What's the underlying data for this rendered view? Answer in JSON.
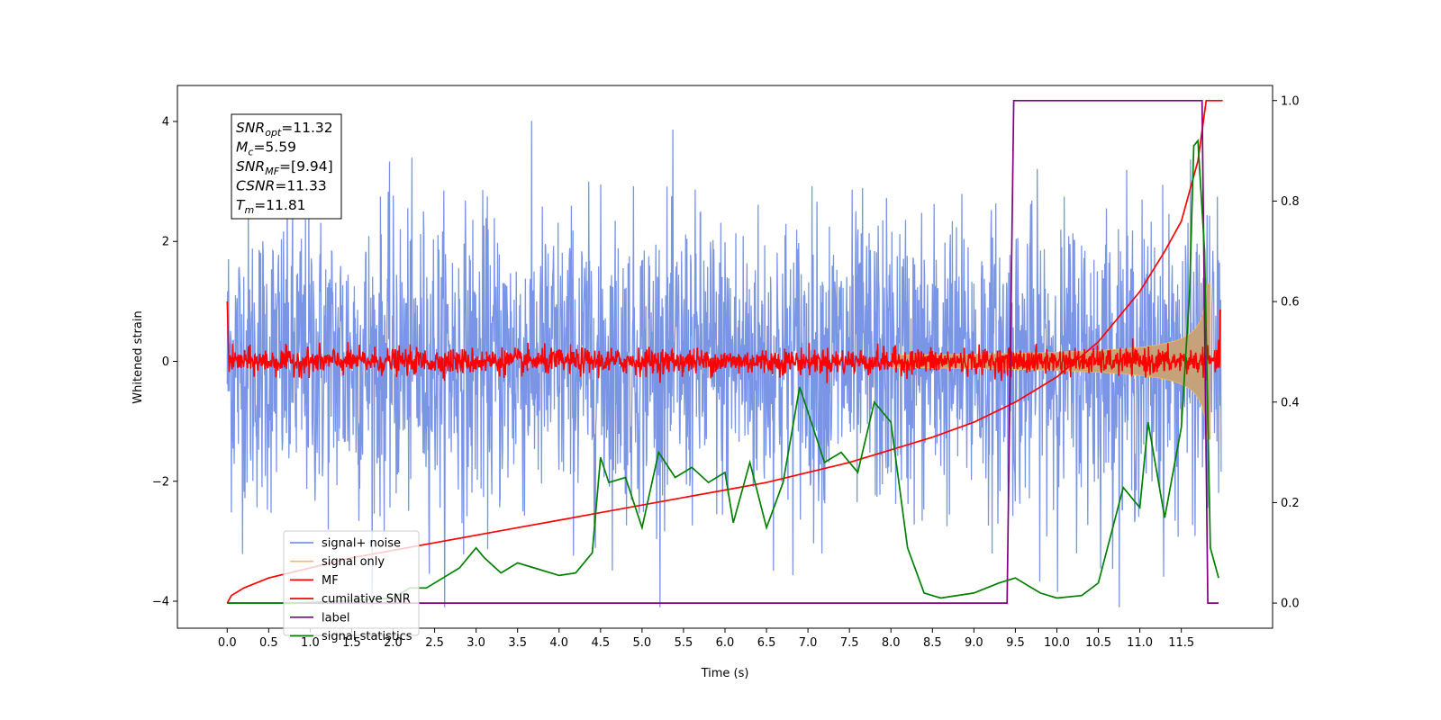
{
  "chart_data": {
    "type": "line",
    "xlabel": "Time (s)",
    "ylabel": "Whitened strain",
    "xlim": [
      -0.6,
      12.6
    ],
    "ylim": [
      -4.45,
      4.6
    ],
    "y2lim": [
      -0.05,
      1.03
    ],
    "xticks": [
      "0.0",
      "0.5",
      "1.0",
      "1.5",
      "2.0",
      "2.5",
      "3.0",
      "3.5",
      "4.0",
      "4.5",
      "5.0",
      "5.5",
      "6.0",
      "6.5",
      "7.0",
      "7.5",
      "8.0",
      "8.5",
      "9.0",
      "9.5",
      "10.0",
      "10.5",
      "11.0",
      "11.5"
    ],
    "yticks": [
      "−4",
      "−2",
      "0",
      "2",
      "4"
    ],
    "y2ticks": [
      "0.0",
      "0.2",
      "0.4",
      "0.6",
      "0.8",
      "1.0"
    ],
    "grid": false,
    "legend_position": "lower-left",
    "annotation": {
      "lines": [
        {
          "name": "SNR",
          "sub": "opt",
          "value": "=11.32"
        },
        {
          "name": "M",
          "sub": "c",
          "value": "=5.59"
        },
        {
          "name": "SNR",
          "sub": "MF",
          "value": "=[9.94]"
        },
        {
          "name": "CSNR",
          "sub": "",
          "value": "=11.33"
        },
        {
          "name": "T",
          "sub": "m",
          "value": "=11.81"
        }
      ]
    },
    "series": [
      {
        "name": "signal+ noise",
        "color": "#7a95e6",
        "axis": "left",
        "style": "noise",
        "amplitude": 1.2
      },
      {
        "name": "signal only",
        "color": "#f5b85f",
        "axis": "left",
        "style": "chirp",
        "fill": "#c6a27a"
      },
      {
        "name": "MF",
        "color": "#ff0000",
        "axis": "left",
        "style": "noise",
        "amplitude": 0.12
      },
      {
        "name": "cumilative SNR",
        "color": "#ff0000",
        "axis": "right",
        "x": [
          0.0,
          0.05,
          0.2,
          0.5,
          1.0,
          1.5,
          2.0,
          2.5,
          3.0,
          3.5,
          4.0,
          4.5,
          5.0,
          5.5,
          6.0,
          6.5,
          7.0,
          7.5,
          8.0,
          8.5,
          9.0,
          9.5,
          10.0,
          10.5,
          11.0,
          11.3,
          11.5,
          11.6,
          11.7,
          11.8,
          11.9,
          12.0
        ],
        "y": [
          0.0,
          0.015,
          0.03,
          0.05,
          0.07,
          0.09,
          0.105,
          0.12,
          0.135,
          0.15,
          0.165,
          0.18,
          0.195,
          0.21,
          0.225,
          0.24,
          0.26,
          0.28,
          0.305,
          0.33,
          0.36,
          0.4,
          0.45,
          0.52,
          0.62,
          0.7,
          0.76,
          0.82,
          0.88,
          1.0,
          1.0,
          1.0
        ]
      },
      {
        "name": "label",
        "color": "#800080",
        "axis": "right",
        "x": [
          0.0,
          9.4,
          9.48,
          11.75,
          11.82,
          11.95
        ],
        "y": [
          0.0,
          0.0,
          1.0,
          1.0,
          0.0,
          0.0
        ]
      },
      {
        "name": "signal statistics",
        "color": "#008000",
        "axis": "right",
        "x": [
          0.0,
          0.3,
          0.8,
          1.5,
          2.0,
          2.2,
          2.4,
          2.6,
          2.8,
          3.0,
          3.1,
          3.3,
          3.5,
          3.7,
          3.9,
          4.0,
          4.2,
          4.4,
          4.5,
          4.6,
          4.8,
          5.0,
          5.2,
          5.4,
          5.6,
          5.8,
          6.0,
          6.1,
          6.3,
          6.5,
          6.7,
          6.9,
          7.0,
          7.2,
          7.4,
          7.6,
          7.8,
          8.0,
          8.2,
          8.4,
          8.6,
          9.0,
          9.3,
          9.5,
          9.8,
          10.0,
          10.3,
          10.5,
          10.8,
          11.0,
          11.1,
          11.3,
          11.5,
          11.6,
          11.65,
          11.7,
          11.78,
          11.85,
          11.95
        ],
        "y": [
          0.0,
          0.0,
          0.0,
          0.005,
          0.01,
          0.03,
          0.03,
          0.05,
          0.07,
          0.11,
          0.09,
          0.06,
          0.08,
          0.07,
          0.06,
          0.055,
          0.06,
          0.1,
          0.29,
          0.24,
          0.25,
          0.15,
          0.3,
          0.25,
          0.27,
          0.24,
          0.26,
          0.16,
          0.28,
          0.15,
          0.24,
          0.43,
          0.38,
          0.28,
          0.3,
          0.26,
          0.4,
          0.36,
          0.11,
          0.02,
          0.01,
          0.02,
          0.04,
          0.05,
          0.02,
          0.01,
          0.015,
          0.04,
          0.23,
          0.19,
          0.36,
          0.17,
          0.35,
          0.62,
          0.91,
          0.92,
          0.7,
          0.11,
          0.05
        ]
      }
    ]
  }
}
